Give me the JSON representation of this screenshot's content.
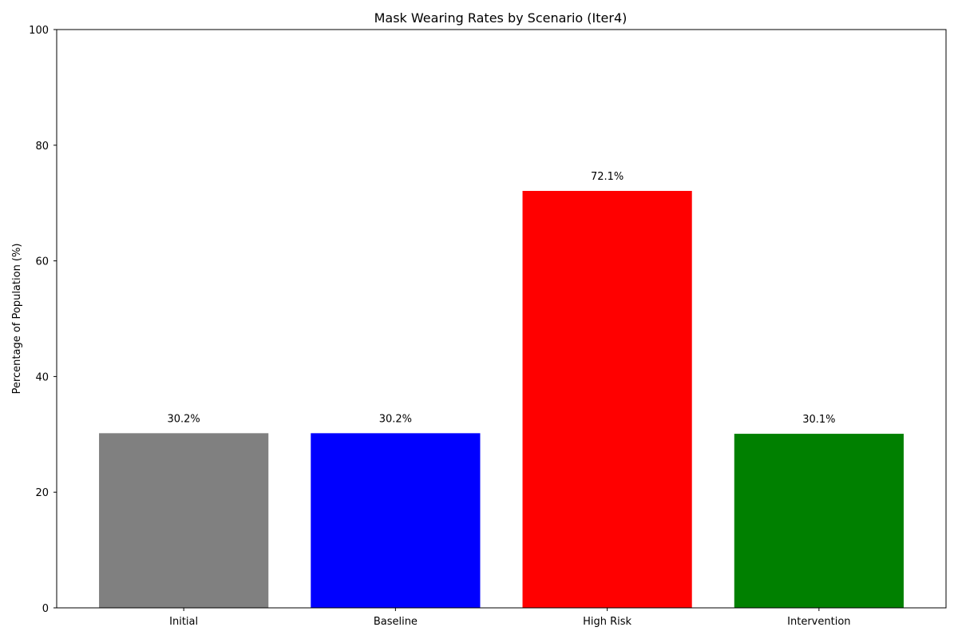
{
  "chart_data": {
    "type": "bar",
    "title": "Mask Wearing Rates by Scenario (Iter4)",
    "xlabel": "",
    "ylabel": "Percentage of Population (%)",
    "categories": [
      "Initial",
      "Baseline",
      "High Risk",
      "Intervention"
    ],
    "values": [
      30.2,
      30.2,
      72.1,
      30.1
    ],
    "value_labels": [
      "30.2%",
      "30.2%",
      "72.1%",
      "30.1%"
    ],
    "colors": [
      "#808080",
      "#0000ff",
      "#ff0000",
      "#008000"
    ],
    "ylim": [
      0,
      100
    ],
    "yticks": [
      0,
      20,
      40,
      60,
      80,
      100
    ],
    "ytick_labels": [
      "0",
      "20",
      "40",
      "60",
      "80",
      "100"
    ],
    "grid": false,
    "legend": "none"
  }
}
